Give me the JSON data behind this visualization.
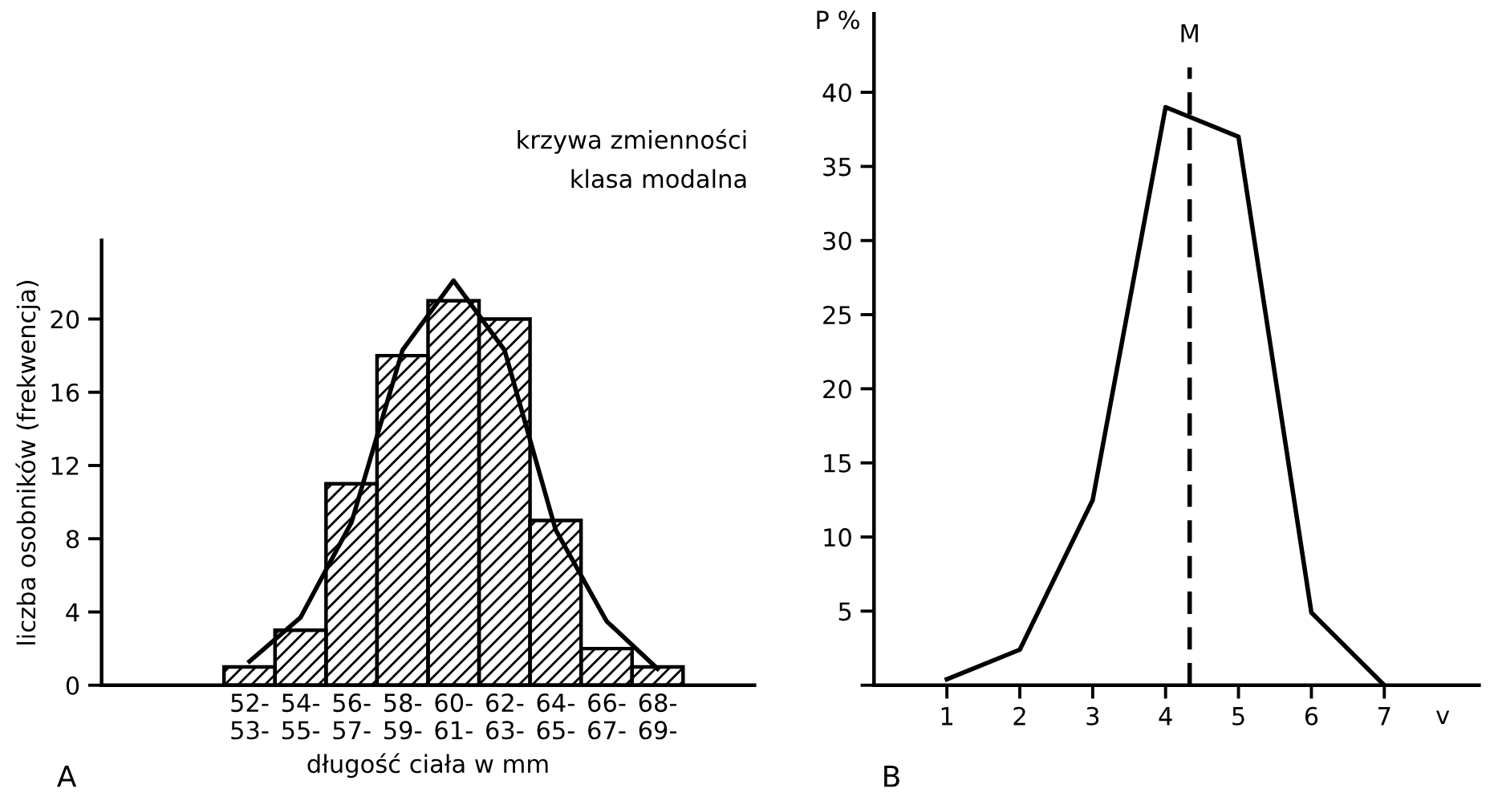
{
  "chart_data": [
    {
      "type": "bar",
      "xlabel": "długość ciała w mm",
      "ylabel": "liczba osobników (frekwencja)",
      "categories": [
        "52-\n53-",
        "54-\n55-",
        "56-\n57-",
        "58-\n59-",
        "60-\n61-",
        "62-\n63-",
        "64-\n65-",
        "66-\n67-",
        "68-\n69-"
      ],
      "values": [
        1,
        3,
        11,
        18,
        21,
        20,
        9,
        2,
        1
      ],
      "color": "#000000",
      "series": [
        {
          "name": "krzywa zmienności",
          "type": "line",
          "color": "#000000",
          "values": [
            1.3,
            3.7,
            8.9,
            18.3,
            22.1,
            18.3,
            8.5,
            3.5,
            0.9
          ]
        }
      ],
      "ylim": [
        0,
        24.3
      ],
      "yticks": [
        0,
        4,
        8,
        12,
        16,
        20
      ],
      "annotations": [
        "klasa modalna",
        "A"
      ]
    },
    {
      "type": "line",
      "xlabel": "v",
      "ylabel": "P %",
      "x": [
        1,
        2,
        3,
        4,
        5,
        6,
        7
      ],
      "series": [
        {
          "color": "#000000",
          "values": [
            0.4,
            2.4,
            12.5,
            39,
            37,
            4.9,
            0
          ]
        }
      ],
      "xlim": [
        0,
        8.3
      ],
      "ylim": [
        0,
        45.3
      ],
      "xticks": [
        1,
        2,
        3,
        4,
        5,
        6,
        7
      ],
      "yticks": [
        {
          "value": 0,
          "label": null
        },
        5,
        10,
        15,
        20,
        25,
        30,
        35,
        40
      ],
      "ref_lines": [
        {
          "axis": "x",
          "value": 4.33,
          "label": "M",
          "color": "#000000",
          "line_style": "dashed"
        }
      ],
      "annotations": [
        "B"
      ]
    }
  ]
}
